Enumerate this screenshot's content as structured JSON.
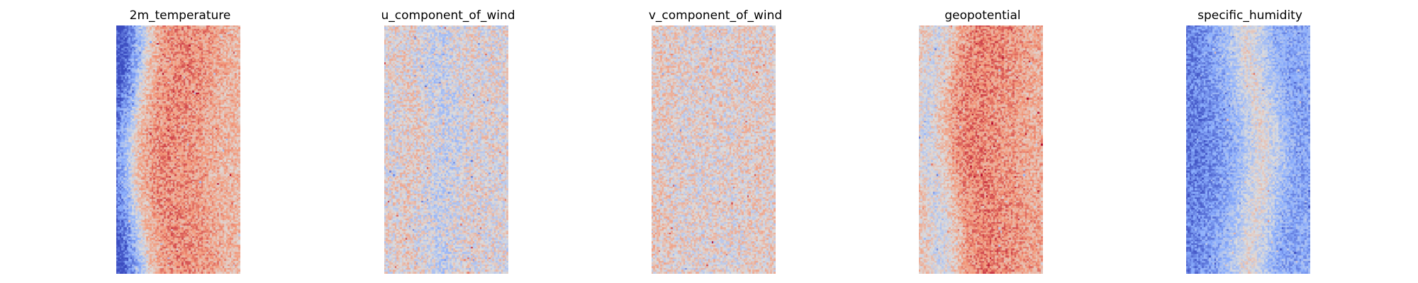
{
  "chart_data": [
    {
      "type": "heatmap",
      "title": "2m_temperature",
      "colormap": "coolwarm",
      "axes": "off",
      "grid": false,
      "colorbar": false,
      "rows": 140,
      "cols": 70,
      "base_value_profile": [
        -0.95,
        -0.45,
        0.2,
        0.45,
        0.52,
        0.5,
        0.46,
        0.38,
        0.3,
        0.28
      ],
      "noise": 0.28,
      "vertical_bands": 2
    },
    {
      "type": "heatmap",
      "title": "u_component_of_wind",
      "colormap": "coolwarm",
      "axes": "off",
      "grid": false,
      "colorbar": false,
      "rows": 140,
      "cols": 70,
      "base_value_profile": [
        0.0,
        0.05,
        0.1,
        0.0,
        -0.15,
        -0.1,
        0.0,
        0.05,
        0.0,
        0.0
      ],
      "noise": 0.35,
      "vertical_bands": 3
    },
    {
      "type": "heatmap",
      "title": "v_component_of_wind",
      "colormap": "coolwarm",
      "axes": "off",
      "grid": false,
      "colorbar": false,
      "rows": 140,
      "cols": 70,
      "base_value_profile": [
        0.15,
        0.1,
        0.05,
        0.05,
        0.05,
        0.05,
        0.05,
        0.1,
        0.1,
        0.1
      ],
      "noise": 0.35,
      "vertical_bands": 3
    },
    {
      "type": "heatmap",
      "title": "geopotential",
      "colormap": "coolwarm",
      "axes": "off",
      "grid": false,
      "colorbar": false,
      "rows": 140,
      "cols": 70,
      "base_value_profile": [
        0.15,
        -0.1,
        0.15,
        0.45,
        0.55,
        0.55,
        0.5,
        0.45,
        0.38,
        0.35
      ],
      "noise": 0.28,
      "vertical_bands": 2
    },
    {
      "type": "heatmap",
      "title": "specific_humidity",
      "colormap": "coolwarm",
      "axes": "off",
      "grid": false,
      "colorbar": false,
      "rows": 140,
      "cols": 70,
      "base_value_profile": [
        -0.75,
        -0.7,
        -0.6,
        -0.45,
        -0.2,
        0.05,
        -0.15,
        -0.45,
        -0.55,
        -0.5
      ],
      "noise": 0.25,
      "vertical_bands": 2
    }
  ]
}
